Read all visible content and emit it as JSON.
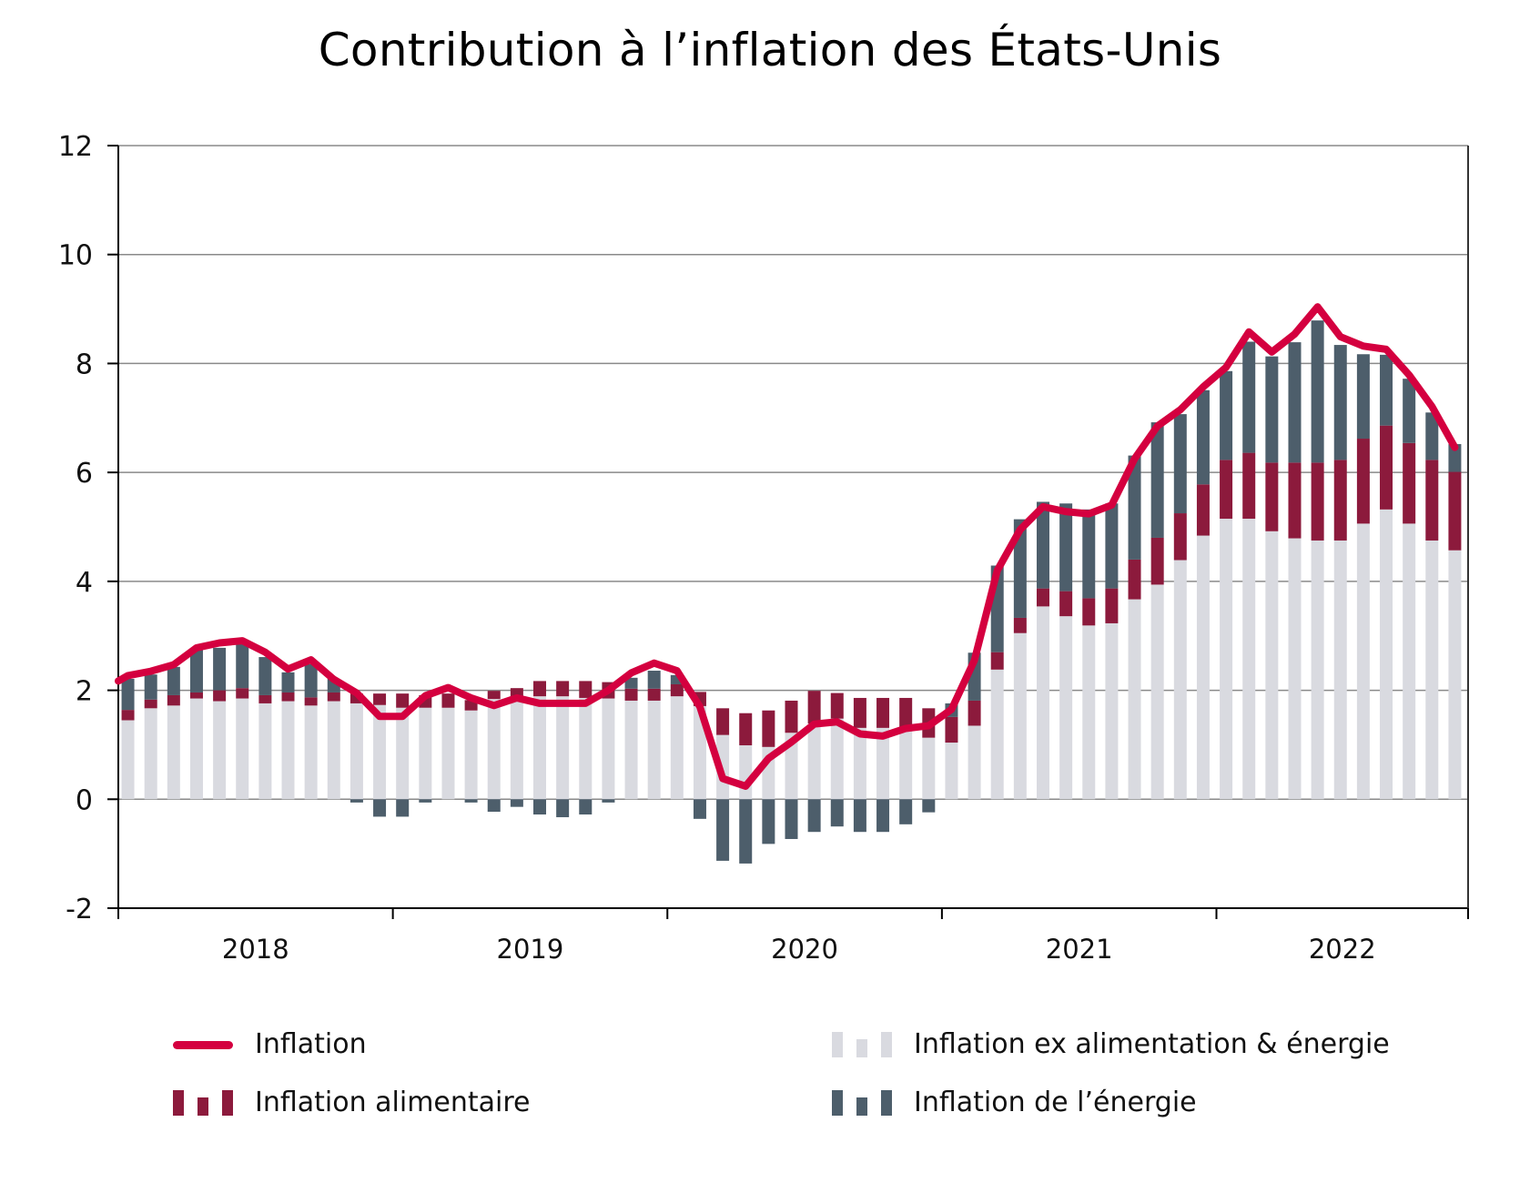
{
  "title": "Contribution à l’inflation des États-Unis",
  "chart_data": {
    "type": "bar",
    "stacked": true,
    "title": "Contribution à l’inflation des États-Unis",
    "xlabel": "",
    "ylabel": "",
    "ylim": [
      -2,
      12
    ],
    "yticks": [
      -2,
      0,
      2,
      4,
      6,
      8,
      10,
      12
    ],
    "grid": true,
    "year_labels": [
      "2018",
      "2019",
      "2020",
      "2021",
      "2022"
    ],
    "months_per_year": 12,
    "start": "2018-01",
    "end": "2022-11",
    "colors": {
      "inflation": "#d4003f",
      "food": "#8c1a3c",
      "core": "#d9dae0",
      "energy": "#4d5e6b"
    },
    "legend_position": "bottom",
    "legend": [
      {
        "key": "inflation",
        "label": "Inflation",
        "kind": "line"
      },
      {
        "key": "core",
        "label": "Inflation ex alimentation & énergie",
        "kind": "bar"
      },
      {
        "key": "food",
        "label": "Inflation alimentaire",
        "kind": "bar"
      },
      {
        "key": "energy",
        "label": "Inflation de l’énergie",
        "kind": "bar"
      }
    ],
    "series": [
      {
        "name": "Inflation ex alimentation & énergie",
        "key": "core",
        "values": [
          1.45,
          1.67,
          1.72,
          1.85,
          1.8,
          1.85,
          1.76,
          1.8,
          1.72,
          1.8,
          1.76,
          1.73,
          1.68,
          1.68,
          1.68,
          1.63,
          1.84,
          1.86,
          1.89,
          1.89,
          1.86,
          1.85,
          1.81,
          1.81,
          1.89,
          1.71,
          1.18,
          0.99,
          0.96,
          1.22,
          1.39,
          1.48,
          1.31,
          1.31,
          1.25,
          1.13,
          1.04,
          1.35,
          2.38,
          3.05,
          3.54,
          3.36,
          3.19,
          3.23,
          3.67,
          3.94,
          4.39,
          4.84,
          5.15,
          5.15,
          4.92,
          4.79,
          4.75,
          4.75,
          5.06,
          5.32,
          5.06,
          4.75,
          4.57
        ]
      },
      {
        "name": "Inflation alimentaire",
        "key": "food",
        "values": [
          0.19,
          0.16,
          0.19,
          0.11,
          0.2,
          0.19,
          0.15,
          0.16,
          0.15,
          0.16,
          0.18,
          0.21,
          0.26,
          0.23,
          0.26,
          0.19,
          0.15,
          0.18,
          0.28,
          0.28,
          0.31,
          0.3,
          0.22,
          0.22,
          0.22,
          0.26,
          0.49,
          0.59,
          0.67,
          0.59,
          0.6,
          0.47,
          0.55,
          0.55,
          0.61,
          0.54,
          0.47,
          0.46,
          0.32,
          0.28,
          0.33,
          0.46,
          0.5,
          0.64,
          0.73,
          0.86,
          0.86,
          0.94,
          1.08,
          1.21,
          1.26,
          1.39,
          1.43,
          1.48,
          1.56,
          1.54,
          1.48,
          1.48,
          1.44
        ]
      },
      {
        "name": "Inflation de l’énergie",
        "key": "energy",
        "values": [
          0.57,
          0.46,
          0.52,
          0.78,
          0.78,
          0.81,
          0.7,
          0.37,
          0.61,
          0.25,
          -0.06,
          -0.32,
          -0.32,
          -0.06,
          0.0,
          -0.06,
          -0.23,
          -0.14,
          -0.28,
          -0.33,
          -0.28,
          -0.06,
          0.2,
          0.33,
          0.17,
          -0.36,
          -1.13,
          -1.18,
          -0.82,
          -0.73,
          -0.6,
          -0.5,
          -0.6,
          -0.6,
          -0.46,
          -0.24,
          0.25,
          0.88,
          1.59,
          1.81,
          1.59,
          1.61,
          1.63,
          1.56,
          1.91,
          2.12,
          1.82,
          1.73,
          1.63,
          2.04,
          1.95,
          2.21,
          2.61,
          2.11,
          1.55,
          1.3,
          1.18,
          0.87,
          0.51
        ]
      },
      {
        "name": "Inflation",
        "key": "inflation",
        "type": "line",
        "start_value": 2.17,
        "values": [
          2.27,
          2.35,
          2.47,
          2.78,
          2.87,
          2.91,
          2.7,
          2.39,
          2.56,
          2.2,
          1.95,
          1.52,
          1.52,
          1.9,
          2.05,
          1.86,
          1.72,
          1.86,
          1.76,
          1.76,
          1.76,
          2.0,
          2.32,
          2.5,
          2.36,
          1.7,
          0.38,
          0.24,
          0.75,
          1.05,
          1.38,
          1.42,
          1.2,
          1.16,
          1.3,
          1.35,
          1.65,
          2.55,
          4.2,
          4.95,
          5.37,
          5.28,
          5.24,
          5.4,
          6.25,
          6.85,
          7.15,
          7.57,
          7.93,
          8.58,
          8.21,
          8.54,
          9.04,
          8.49,
          8.32,
          8.26,
          7.79,
          7.21,
          6.46
        ]
      }
    ]
  }
}
